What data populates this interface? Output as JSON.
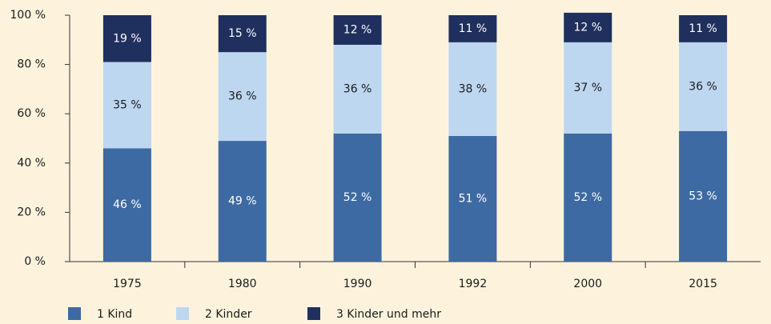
{
  "chart_data": {
    "type": "bar",
    "stacked": true,
    "categories": [
      "1975",
      "1980",
      "1990",
      "1992",
      "2000",
      "2015"
    ],
    "series": [
      {
        "name": "1 Kind",
        "color": "#3d6aa3",
        "values": [
          46,
          49,
          52,
          51,
          52,
          53
        ],
        "value_labels": [
          "46 %",
          "49 %",
          "52 %",
          "51 %",
          "52 %",
          "53 %"
        ]
      },
      {
        "name": "2 Kinder",
        "color": "#bdd7f0",
        "values": [
          35,
          36,
          36,
          38,
          37,
          36
        ],
        "value_labels": [
          "35 %",
          "36 %",
          "36 %",
          "38 %",
          "37 %",
          "36 %"
        ]
      },
      {
        "name": "3 Kinder und mehr",
        "color": "#1f2f5e",
        "values": [
          19,
          15,
          12,
          11,
          12,
          11
        ],
        "value_labels": [
          "19 %",
          "15 %",
          "12 %",
          "11 %",
          "12 %",
          "11 %"
        ]
      }
    ],
    "ylim": [
      0,
      100
    ],
    "yticks": [
      {
        "value": 0,
        "label": "0 %"
      },
      {
        "value": 20,
        "label": "20 %"
      },
      {
        "value": 40,
        "label": "40 %"
      },
      {
        "value": 60,
        "label": "60 %"
      },
      {
        "value": 80,
        "label": "80 %"
      },
      {
        "value": 100,
        "label": "100 %"
      }
    ],
    "legend": "bottom-left"
  }
}
